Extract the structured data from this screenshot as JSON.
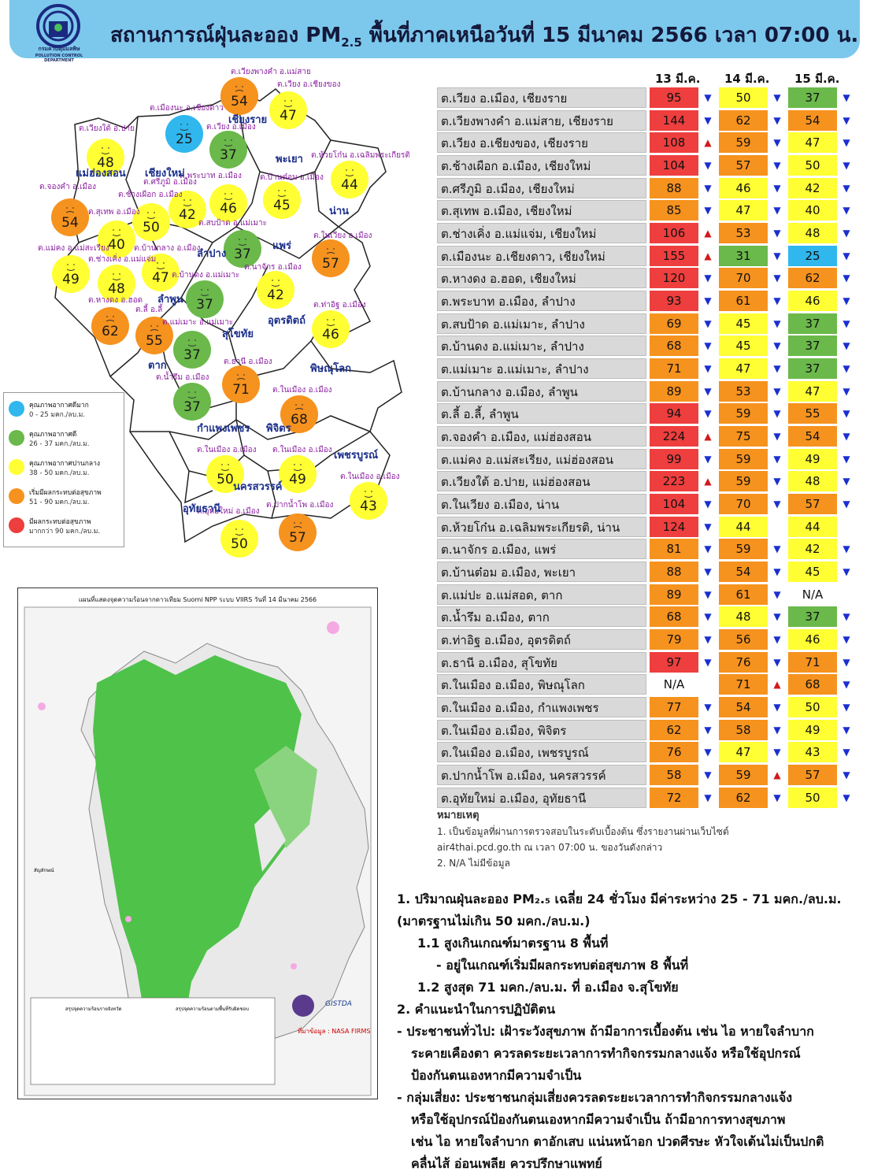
{
  "header": {
    "title_pre": "สถานการณ์ฝุ่นละออง PM",
    "title_sub": "2.5",
    "title_post": " พื้นที่ภาคเหนือวันที่ 15 มีนาคม 2566 เวลา 07:00 น.",
    "logo_line1": "กรมควบคุมมลพิษ",
    "logo_line2": "POLLUTION CONTROL DEPARTMENT"
  },
  "colors": {
    "very_good": "#2fb7ee",
    "good": "#6ab94a",
    "moderate": "#ffff33",
    "start_effect": "#f6921e",
    "effect": "#ee3e3e",
    "arrow_down": "#1a2fd1",
    "arrow_up": "#d11a1a"
  },
  "legend": [
    {
      "label": "คุณภาพอากาศดีมาก",
      "range": "0 - 25 มคก./ลบ.ม.",
      "level": "very_good"
    },
    {
      "label": "คุณภาพอากาศดี",
      "range": "26 - 37 มคก./ลบ.ม.",
      "level": "good"
    },
    {
      "label": "คุณภาพอากาศปานกลาง",
      "range": "38 - 50 มคก./ลบ.ม.",
      "level": "moderate"
    },
    {
      "label": "เริ่มมีผลกระทบต่อสุขภาพ",
      "range": "51 - 90 มคก./ลบ.ม.",
      "level": "start_effect"
    },
    {
      "label": "มีผลกระทบต่อสุขภาพ",
      "range": "มากกว่า 90 มคก./ลบ.ม.",
      "level": "effect"
    }
  ],
  "map": {
    "provinces": [
      "เชียงราย",
      "แม่ฮ่องสอน",
      "เชียงใหม่",
      "พะเยา",
      "น่าน",
      "ลำปาง",
      "แพร่",
      "ลำพูน",
      "อุตรดิตถ์",
      "สุโขทัย",
      "ตาก",
      "พิษณุโลก",
      "กำแพงเพชร",
      "พิจิตร",
      "เพชรบูรณ์",
      "นครสวรรค์",
      "อุทัยธานี"
    ],
    "stations": [
      {
        "name": "ต.เวียงพางคำ อ.แม่สาย",
        "value": "54",
        "level": "start_effect"
      },
      {
        "name": "ต.เวียง อ.เชียงของ",
        "value": "47",
        "level": "moderate"
      },
      {
        "name": "ต.เมืองนะ อ.เชียงดาว",
        "value": "25",
        "level": "very_good"
      },
      {
        "name": "ต.เวียง อ.เมือง",
        "value": "37",
        "level": "good"
      },
      {
        "name": "ต.เวียงใต้ อ.ปาย",
        "value": "48",
        "level": "moderate"
      },
      {
        "name": "ต.ห้วยโก๋น อ.เฉลิมพระเกียรติ",
        "value": "44",
        "level": "moderate"
      },
      {
        "name": "ต.จองคำ อ.เมือง",
        "value": "54",
        "level": "start_effect"
      },
      {
        "name": "ต.ศรีภูมิ อ.เมือง",
        "value": "42",
        "level": "moderate"
      },
      {
        "name": "ต.ช้างเผือก อ.เมือง",
        "value": "50",
        "level": "moderate"
      },
      {
        "name": "ต.พระบาท อ.เมือง",
        "value": "46",
        "level": "moderate"
      },
      {
        "name": "ต.บ้านต๋อม อ.เมือง",
        "value": "45",
        "level": "moderate"
      },
      {
        "name": "ต.สุเทพ อ.เมือง",
        "value": "40",
        "level": "moderate"
      },
      {
        "name": "ต.สบป้าด อ.แม่เมาะ",
        "value": "37",
        "level": "good"
      },
      {
        "name": "ต.ในเวียง อ.เมือง",
        "value": "57",
        "level": "start_effect"
      },
      {
        "name": "ต.แม่คง อ.แม่สะเรียง",
        "value": "49",
        "level": "moderate"
      },
      {
        "name": "ต.ช่างเคิ่ง อ.แม่แจ่ม",
        "value": "48",
        "level": "moderate"
      },
      {
        "name": "ต.บ้านกลาง อ.เมือง",
        "value": "47",
        "level": "moderate"
      },
      {
        "name": "ต.นาจักร อ.เมือง",
        "value": "42",
        "level": "moderate"
      },
      {
        "name": "ต.บ้านดง อ.แม่เมาะ",
        "value": "37",
        "level": "good"
      },
      {
        "name": "ต.หางดง อ.ฮอด",
        "value": "62",
        "level": "start_effect"
      },
      {
        "name": "ต.ลี้ อ.ลี้",
        "value": "55",
        "level": "start_effect"
      },
      {
        "name": "ต.แม่เมาะ อ.แม่เมาะ",
        "value": "37",
        "level": "good"
      },
      {
        "name": "ต.ท่าอิฐ อ.เมือง",
        "value": "46",
        "level": "moderate"
      },
      {
        "name": "ต.ธานี อ.เมือง",
        "value": "71",
        "level": "start_effect"
      },
      {
        "name": "ต.น้ำรึม อ.เมือง",
        "value": "37",
        "level": "good"
      },
      {
        "name": "ต.ในเมือง อ.เมือง (พิษณุโลก)",
        "value": "68",
        "level": "start_effect"
      },
      {
        "name": "ต.ในเมือง อ.เมือง (กำแพงเพชร)",
        "value": "50",
        "level": "moderate"
      },
      {
        "name": "ต.ในเมือง อ.เมือง (พิจิตร)",
        "value": "49",
        "level": "moderate"
      },
      {
        "name": "ต.ในเมือง อ.เมือง (เพชรบูรณ์)",
        "value": "43",
        "level": "moderate"
      },
      {
        "name": "ต.อุทัยใหม่ อ.เมือง",
        "value": "50",
        "level": "moderate"
      },
      {
        "name": "ต.ปากน้ำโพ อ.เมือง",
        "value": "57",
        "level": "start_effect"
      }
    ]
  },
  "satellite": {
    "title": "แผนที่แสดงจุดความร้อนจากดาวเทียม Suomi NPP ระบบ VIIRS  วันที่ 14 มีนาคม 2566",
    "source": "ที่มาข้อมูล : NASA FIRMS",
    "gistda": "GISTDA",
    "legend_heading": "สัญลักษณ์",
    "left_table_title": "สรุปจุดความร้อนรายจังหวัด",
    "right_table_title": "สรุปจุดความร้อนตามพื้นที่รับผิดชอบ"
  },
  "table": {
    "dates": [
      "13 มี.ค.",
      "14 มี.ค.",
      "15 มี.ค."
    ],
    "rows": [
      {
        "station": "ต.เวียง อ.เมือง, เชียงราย",
        "d13": "95",
        "l13": "effect",
        "a13": "down",
        "d14": "50",
        "l14": "moderate",
        "a14": "down",
        "d15": "37",
        "l15": "good",
        "a15": "down"
      },
      {
        "station": "ต.เวียงพางคำ อ.แม่สาย, เชียงราย",
        "d13": "144",
        "l13": "effect",
        "a13": "down",
        "d14": "62",
        "l14": "start_effect",
        "a14": "down",
        "d15": "54",
        "l15": "start_effect",
        "a15": "down"
      },
      {
        "station": "ต.เวียง อ.เชียงของ, เชียงราย",
        "d13": "108",
        "l13": "effect",
        "a13": "up",
        "d14": "59",
        "l14": "start_effect",
        "a14": "down",
        "d15": "47",
        "l15": "moderate",
        "a15": "down"
      },
      {
        "station": "ต.ช้างเผือก อ.เมือง, เชียงใหม่",
        "d13": "104",
        "l13": "effect",
        "a13": "down",
        "d14": "57",
        "l14": "start_effect",
        "a14": "down",
        "d15": "50",
        "l15": "moderate",
        "a15": "down"
      },
      {
        "station": "ต.ศรีภูมิ อ.เมือง, เชียงใหม่",
        "d13": "88",
        "l13": "start_effect",
        "a13": "down",
        "d14": "46",
        "l14": "moderate",
        "a14": "down",
        "d15": "42",
        "l15": "moderate",
        "a15": "down"
      },
      {
        "station": "ต.สุเทพ อ.เมือง, เชียงใหม่",
        "d13": "85",
        "l13": "start_effect",
        "a13": "down",
        "d14": "47",
        "l14": "moderate",
        "a14": "down",
        "d15": "40",
        "l15": "moderate",
        "a15": "down"
      },
      {
        "station": "ต.ช่างเคิ่ง อ.แม่แจ่ม, เชียงใหม่",
        "d13": "106",
        "l13": "effect",
        "a13": "up",
        "d14": "53",
        "l14": "start_effect",
        "a14": "down",
        "d15": "48",
        "l15": "moderate",
        "a15": "down"
      },
      {
        "station": "ต.เมืองนะ อ.เชียงดาว, เชียงใหม่",
        "d13": "155",
        "l13": "effect",
        "a13": "up",
        "d14": "31",
        "l14": "good",
        "a14": "down",
        "d15": "25",
        "l15": "very_good",
        "a15": "down"
      },
      {
        "station": "ต.หางดง อ.ฮอด, เชียงใหม่",
        "d13": "120",
        "l13": "effect",
        "a13": "down",
        "d14": "70",
        "l14": "start_effect",
        "a14": "down",
        "d15": "62",
        "l15": "start_effect",
        "a15": "down"
      },
      {
        "station": "ต.พระบาท อ.เมือง, ลำปาง",
        "d13": "93",
        "l13": "effect",
        "a13": "down",
        "d14": "61",
        "l14": "start_effect",
        "a14": "down",
        "d15": "46",
        "l15": "moderate",
        "a15": "down"
      },
      {
        "station": "ต.สบป้าด อ.แม่เมาะ, ลำปาง",
        "d13": "69",
        "l13": "start_effect",
        "a13": "down",
        "d14": "45",
        "l14": "moderate",
        "a14": "down",
        "d15": "37",
        "l15": "good",
        "a15": "down"
      },
      {
        "station": "ต.บ้านดง อ.แม่เมาะ, ลำปาง",
        "d13": "68",
        "l13": "start_effect",
        "a13": "down",
        "d14": "45",
        "l14": "moderate",
        "a14": "down",
        "d15": "37",
        "l15": "good",
        "a15": "down"
      },
      {
        "station": "ต.แม่เมาะ อ.แม่เมาะ, ลำปาง",
        "d13": "71",
        "l13": "start_effect",
        "a13": "down",
        "d14": "47",
        "l14": "moderate",
        "a14": "down",
        "d15": "37",
        "l15": "good",
        "a15": "down"
      },
      {
        "station": "ต.บ้านกลาง อ.เมือง, ลำพูน",
        "d13": "89",
        "l13": "start_effect",
        "a13": "down",
        "d14": "53",
        "l14": "start_effect",
        "a14": "down",
        "d15": "47",
        "l15": "moderate",
        "a15": "down"
      },
      {
        "station": "ต.ลี้ อ.ลี้, ลำพูน",
        "d13": "94",
        "l13": "effect",
        "a13": "down",
        "d14": "59",
        "l14": "start_effect",
        "a14": "down",
        "d15": "55",
        "l15": "start_effect",
        "a15": "down"
      },
      {
        "station": "ต.จองคำ อ.เมือง, แม่ฮ่องสอน",
        "d13": "224",
        "l13": "effect",
        "a13": "up",
        "d14": "75",
        "l14": "start_effect",
        "a14": "down",
        "d15": "54",
        "l15": "start_effect",
        "a15": "down"
      },
      {
        "station": "ต.แม่คง อ.แม่สะเรียง, แม่ฮ่องสอน",
        "d13": "99",
        "l13": "effect",
        "a13": "down",
        "d14": "59",
        "l14": "start_effect",
        "a14": "down",
        "d15": "49",
        "l15": "moderate",
        "a15": "down"
      },
      {
        "station": "ต.เวียงใต้ อ.ปาย, แม่ฮ่องสอน",
        "d13": "223",
        "l13": "effect",
        "a13": "up",
        "d14": "59",
        "l14": "start_effect",
        "a14": "down",
        "d15": "48",
        "l15": "moderate",
        "a15": "down"
      },
      {
        "station": "ต.ในเวียง อ.เมือง, น่าน",
        "d13": "104",
        "l13": "effect",
        "a13": "down",
        "d14": "70",
        "l14": "start_effect",
        "a14": "down",
        "d15": "57",
        "l15": "start_effect",
        "a15": "down"
      },
      {
        "station": "ต.ห้วยโก๋น อ.เฉลิมพระเกียรติ, น่าน",
        "d13": "124",
        "l13": "effect",
        "a13": "down",
        "d14": "44",
        "l14": "moderate",
        "a14": "",
        "d15": "44",
        "l15": "moderate",
        "a15": ""
      },
      {
        "station": "ต.นาจักร อ.เมือง, แพร่",
        "d13": "81",
        "l13": "start_effect",
        "a13": "down",
        "d14": "59",
        "l14": "start_effect",
        "a14": "down",
        "d15": "42",
        "l15": "moderate",
        "a15": "down"
      },
      {
        "station": "ต.บ้านต๋อม อ.เมือง, พะเยา",
        "d13": "88",
        "l13": "start_effect",
        "a13": "down",
        "d14": "54",
        "l14": "start_effect",
        "a14": "down",
        "d15": "45",
        "l15": "moderate",
        "a15": "down"
      },
      {
        "station": "ต.แม่ปะ อ.แม่สอด, ตาก",
        "d13": "89",
        "l13": "start_effect",
        "a13": "down",
        "d14": "61",
        "l14": "start_effect",
        "a14": "down",
        "d15": "N/A",
        "l15": "na",
        "a15": ""
      },
      {
        "station": "ต.น้ำรึม อ.เมือง, ตาก",
        "d13": "68",
        "l13": "start_effect",
        "a13": "down",
        "d14": "48",
        "l14": "moderate",
        "a14": "down",
        "d15": "37",
        "l15": "good",
        "a15": "down"
      },
      {
        "station": "ต.ท่าอิฐ อ.เมือง, อุตรดิตถ์",
        "d13": "79",
        "l13": "start_effect",
        "a13": "down",
        "d14": "56",
        "l14": "start_effect",
        "a14": "down",
        "d15": "46",
        "l15": "moderate",
        "a15": "down"
      },
      {
        "station": "ต.ธานี อ.เมือง, สุโขทัย",
        "d13": "97",
        "l13": "effect",
        "a13": "down",
        "d14": "76",
        "l14": "start_effect",
        "a14": "down",
        "d15": "71",
        "l15": "start_effect",
        "a15": "down"
      },
      {
        "station": "ต.ในเมือง อ.เมือง, พิษณุโลก",
        "d13": "N/A",
        "l13": "na",
        "a13": "",
        "d14": "71",
        "l14": "start_effect",
        "a14": "up",
        "d15": "68",
        "l15": "start_effect",
        "a15": "down"
      },
      {
        "station": "ต.ในเมือง อ.เมือง, กำแพงเพชร",
        "d13": "77",
        "l13": "start_effect",
        "a13": "down",
        "d14": "54",
        "l14": "start_effect",
        "a14": "down",
        "d15": "50",
        "l15": "moderate",
        "a15": "down"
      },
      {
        "station": "ต.ในเมือง อ.เมือง, พิจิตร",
        "d13": "62",
        "l13": "start_effect",
        "a13": "down",
        "d14": "58",
        "l14": "start_effect",
        "a14": "down",
        "d15": "49",
        "l15": "moderate",
        "a15": "down"
      },
      {
        "station": "ต.ในเมือง อ.เมือง, เพชรบูรณ์",
        "d13": "76",
        "l13": "start_effect",
        "a13": "down",
        "d14": "47",
        "l14": "moderate",
        "a14": "down",
        "d15": "43",
        "l15": "moderate",
        "a15": "down"
      },
      {
        "station": "ต.ปากน้ำโพ อ.เมือง, นครสวรรค์",
        "d13": "58",
        "l13": "start_effect",
        "a13": "down",
        "d14": "59",
        "l14": "start_effect",
        "a14": "up",
        "d15": "57",
        "l15": "start_effect",
        "a15": "down"
      },
      {
        "station": "ต.อุทัยใหม่ อ.เมือง, อุทัยธานี",
        "d13": "72",
        "l13": "start_effect",
        "a13": "down",
        "d14": "62",
        "l14": "start_effect",
        "a14": "down",
        "d15": "50",
        "l15": "moderate",
        "a15": "down"
      }
    ]
  },
  "notes": {
    "heading": "หมายเหตุ",
    "line1": "1.  เป็นข้อมูลที่ผ่านการตรวจสอบในระดับเบื้องต้น  ซึ่งรายงานผ่านเว็บไซต์",
    "line2": "air4thai.pcd.go.th  ณ  เวลา 07:00  น.  ของวันดังกล่าว",
    "line3": "2.  N/A  ไม่มีข้อมูล"
  },
  "summary": {
    "l1": "1. ปริมาณฝุ่นละออง PM₂.₅  เฉลี่ย 24 ชั่วโมง มีค่าระหว่าง 25 - 71 มคก./ลบ.ม.",
    "l2": "(มาตรฐานไม่เกิน 50 มคก./ลบ.ม.)",
    "l3": "1.1 สูงเกินเกณฑ์มาตรฐาน 8 พื้นที่",
    "l4": "- อยู่ในเกณฑ์เริ่มมีผลกระทบต่อสุขภาพ 8 พื้นที่",
    "l5": "1.2 สูงสุด 71 มคก./ลบ.ม. ที่ อ.เมือง จ.สุโขทัย",
    "l6": "2. คำแนะนำในการปฏิบัติตน",
    "l7": "- ประชาชนทั่วไป: เฝ้าระวังสุขภาพ ถ้ามีอาการเบื้องต้น เช่น ไอ หายใจลำบาก",
    "l8": "ระคายเคืองตา ควรลดระยะเวลาการทำกิจกรรมกลางแจ้ง หรือใช้อุปกรณ์",
    "l9": "ป้องกันตนเองหากมีความจำเป็น",
    "l10": "- กลุ่มเสี่ยง: ประชาชนกลุ่มเสี่ยงควรลดระยะเวลาการทำกิจกรรมกลางแจ้ง",
    "l11": "หรือใช้อุปกรณ์ป้องกันตนเองหากมีความจำเป็น ถ้ามีอาการทางสุขภาพ",
    "l12": "เช่น ไอ  หายใจลำบาก  ตาอักเสบ  แน่นหน้าอก  ปวดศีรษะ  หัวใจเต้นไม่เป็นปกติ",
    "l13": "คลื่นไส้  อ่อนเพลีย  ควรปรึกษาแพทย์"
  }
}
